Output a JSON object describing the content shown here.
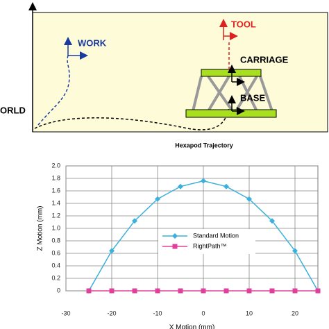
{
  "diagram": {
    "world": "ORLD",
    "work": "WORK",
    "tool": "TOOL",
    "carriage": "CARRIAGE",
    "base": "BASE",
    "caption": "Hexapod Trajectory"
  },
  "chart_data": {
    "type": "line",
    "xlabel": "X Motion (mm)",
    "ylabel": "Z Motion (mm)",
    "xlim": [
      -30,
      25
    ],
    "xticks": [
      -30,
      -20,
      -10,
      0,
      10,
      20
    ],
    "ylim": [
      0,
      2
    ],
    "yticks": [
      0,
      0.2,
      0.4,
      0.6,
      0.8,
      {
        "value": 1,
        "label": "1.0"
      },
      1.2,
      1.4,
      1.6,
      1.8,
      {
        "value": 2,
        "label": "2.0"
      }
    ],
    "grid": true,
    "series": [
      {
        "name": "Standard Motion",
        "color": "#3ab0dc",
        "marker": "diamond",
        "x": [
          -25,
          -20,
          -15,
          -10,
          -5,
          0,
          5,
          10,
          15,
          20,
          25
        ],
        "values": [
          0,
          0.64,
          1.12,
          1.47,
          1.67,
          1.76,
          1.67,
          1.47,
          1.12,
          0.64,
          0
        ]
      },
      {
        "name": "RightPath™",
        "color": "#e0409c",
        "marker": "square",
        "x": [
          -25,
          -20,
          -15,
          -10,
          -5,
          0,
          5,
          10,
          15,
          20,
          25
        ],
        "values": [
          0,
          0,
          0,
          0,
          0,
          0,
          0,
          0,
          0,
          0,
          0
        ]
      }
    ]
  }
}
